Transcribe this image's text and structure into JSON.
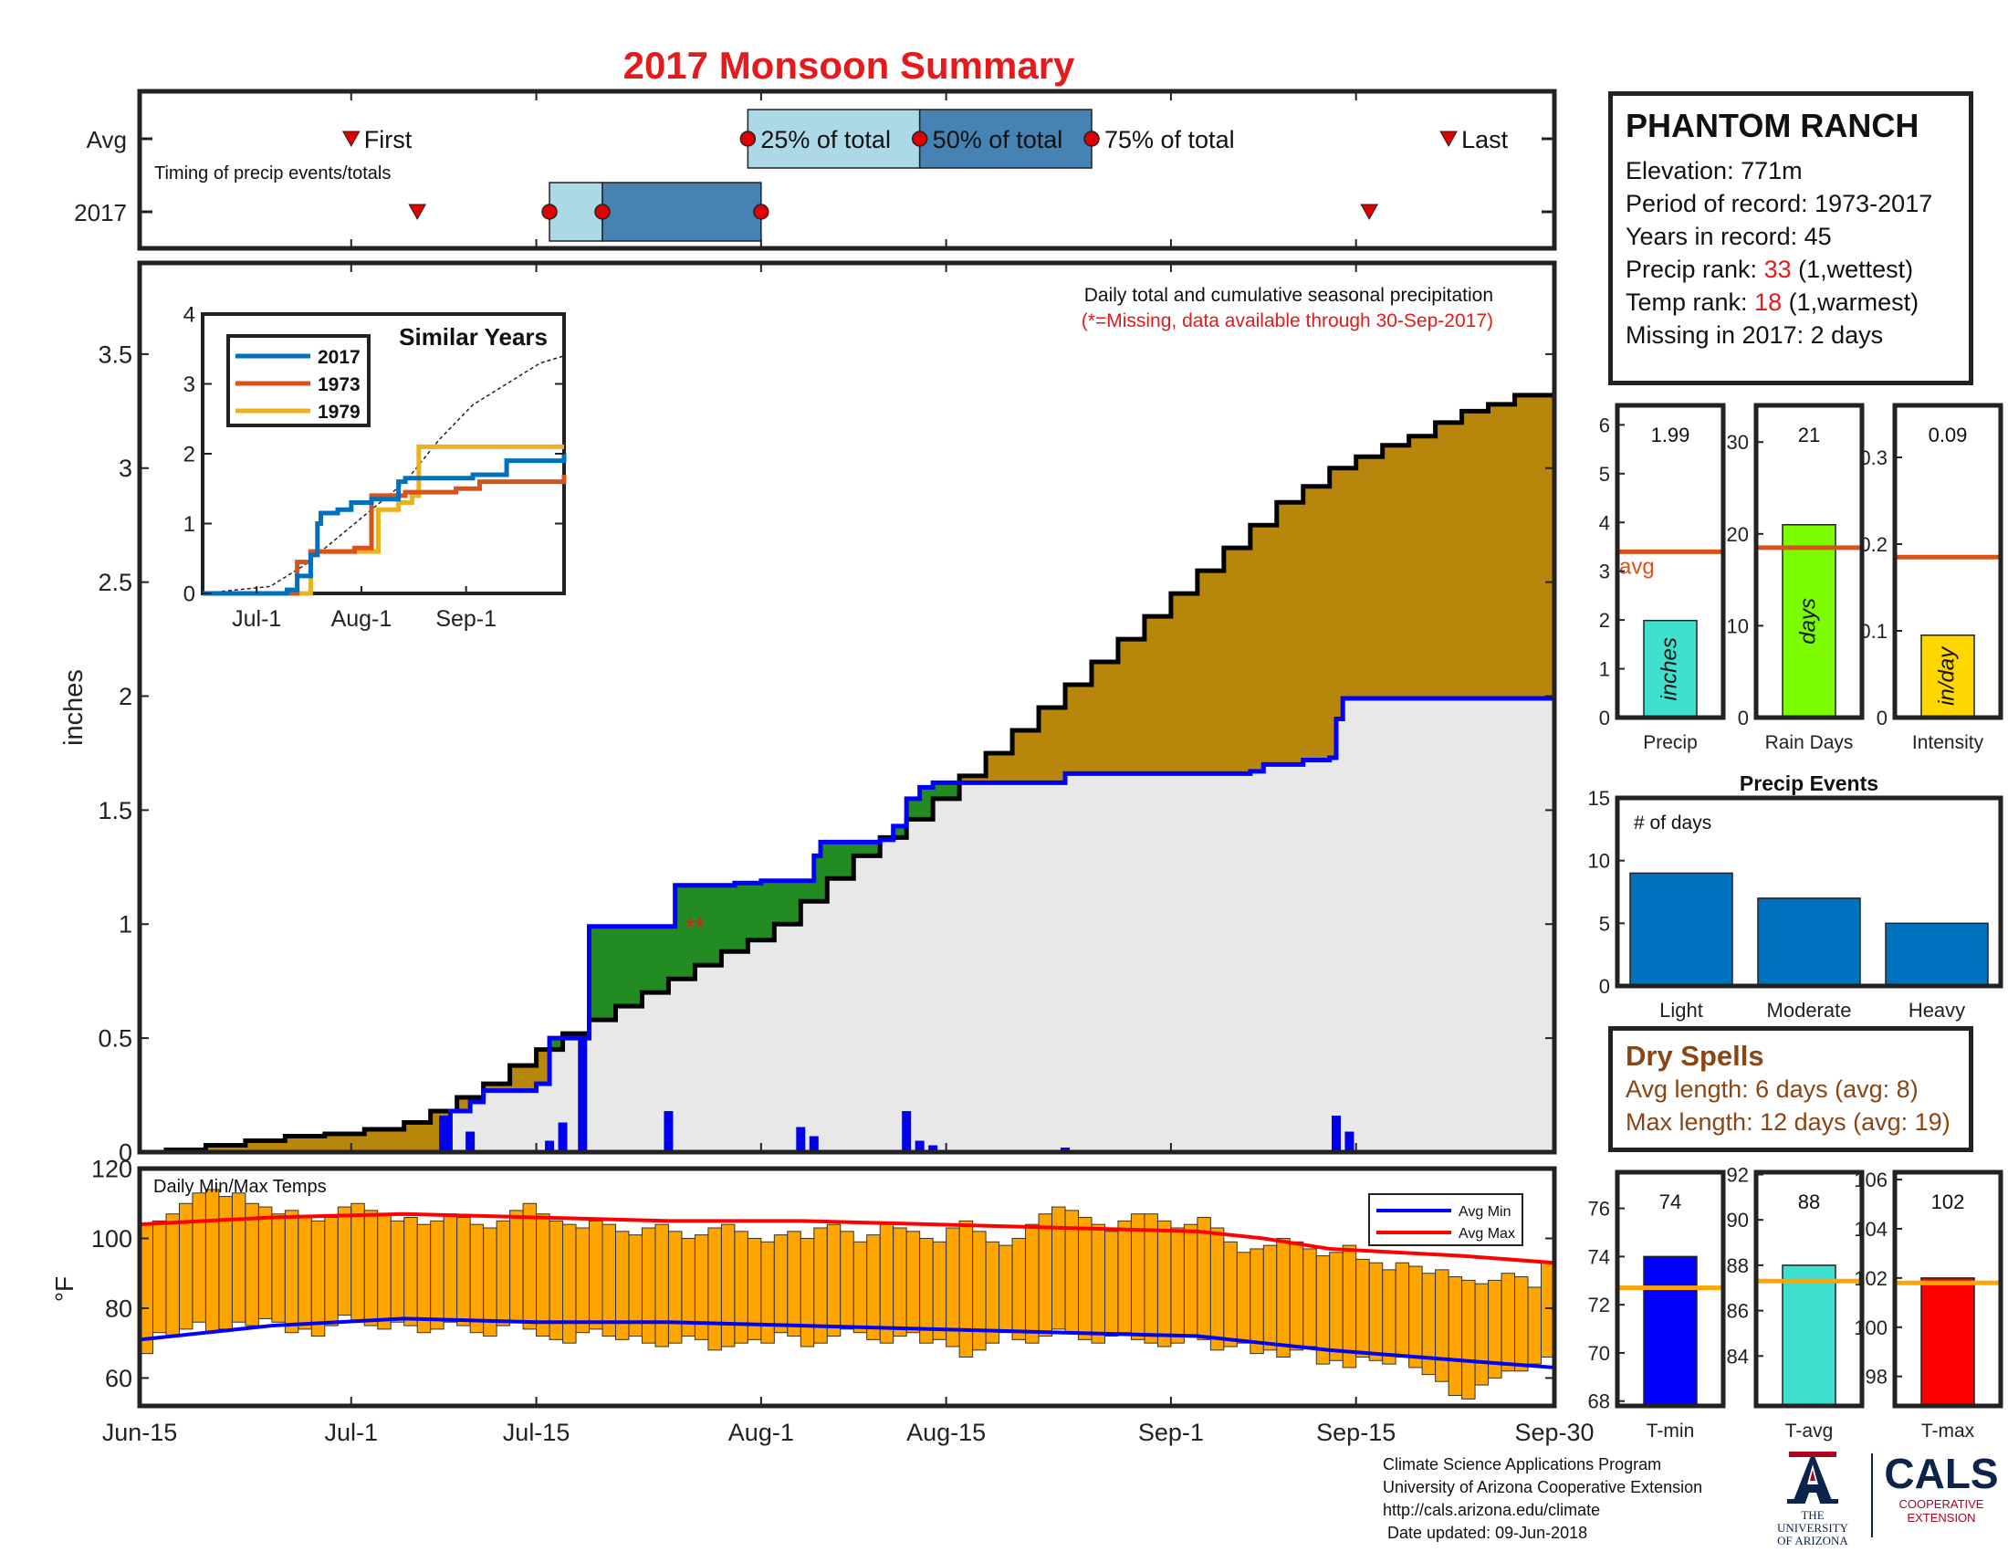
{
  "title": "2017 Monsoon Summary",
  "timing": {
    "row_labels": [
      "Avg",
      "2017"
    ],
    "caption": "Timing of precip events/totals",
    "labels": {
      "first": "First",
      "p25": "25% of total",
      "p50": "50% of total",
      "p75": "75% of total",
      "last": "Last"
    },
    "avg": {
      "first": 16,
      "p25": 46,
      "p50": 59,
      "p75": 72,
      "last": 99
    },
    "y2017": {
      "first": 21,
      "p25": 31,
      "p50": 35,
      "p75": 47,
      "last": 93
    }
  },
  "station": {
    "name": "PHANTOM RANCH",
    "elevation_label": "Elevation: 771m",
    "period_label": "Period of record: 1973-2017",
    "years_label": "Years in record: 45",
    "precip_rank_prefix": "Precip rank: ",
    "precip_rank": "33",
    "precip_rank_suffix": " (1,wettest)",
    "temp_rank_prefix": "Temp rank: ",
    "temp_rank": "18",
    "temp_rank_suffix": " (1,warmest)",
    "missing_label": "Missing in 2017: 2 days"
  },
  "dry_spells": {
    "title": "Dry Spells",
    "avg_line": "Avg length: 6 days (avg: 8)",
    "max_line": "Max length: 12 days (avg: 19)"
  },
  "footer": {
    "lines": [
      "Climate Science Applications Program",
      "University of Arizona Cooperative Extension",
      "http://cals.arizona.edu/climate",
      " Date updated: 09-Jun-2018"
    ],
    "ua_logo_text": [
      "THE UNIVERSITY",
      "OF ARIZONA"
    ],
    "cals_logo_text": [
      "CALS",
      "COOPERATIVE",
      "EXTENSION"
    ]
  },
  "chart_data": [
    {
      "id": "cumulative",
      "type": "area",
      "annotation": "Daily total and cumulative seasonal precipitation",
      "annotation2": "(*=Missing, data available through 30-Sep-2017)",
      "missing_marker": "**",
      "ylabel": "inches",
      "ylim": [
        0,
        3.9
      ],
      "yticks": [
        0,
        0.5,
        1,
        1.5,
        2,
        2.5,
        3,
        3.5
      ],
      "xlim": [
        0,
        107
      ],
      "xticks": [
        {
          "day": 0,
          "label": "Jun-15"
        },
        {
          "day": 16,
          "label": "Jul-1"
        },
        {
          "day": 30,
          "label": "Jul-15"
        },
        {
          "day": 47,
          "label": "Aug-1"
        },
        {
          "day": 61,
          "label": "Aug-15"
        },
        {
          "day": 78,
          "label": "Sep-1"
        },
        {
          "day": 92,
          "label": "Sep-15"
        },
        {
          "day": 107,
          "label": "Sep-30"
        }
      ],
      "avg_cumulative": [
        [
          0,
          0
        ],
        [
          2,
          0.01
        ],
        [
          5,
          0.03
        ],
        [
          8,
          0.05
        ],
        [
          11,
          0.07
        ],
        [
          14,
          0.08
        ],
        [
          17,
          0.1
        ],
        [
          20,
          0.13
        ],
        [
          22,
          0.18
        ],
        [
          24,
          0.24
        ],
        [
          26,
          0.3
        ],
        [
          28,
          0.38
        ],
        [
          30,
          0.45
        ],
        [
          32,
          0.52
        ],
        [
          34,
          0.58
        ],
        [
          36,
          0.64
        ],
        [
          38,
          0.7
        ],
        [
          40,
          0.76
        ],
        [
          42,
          0.82
        ],
        [
          44,
          0.88
        ],
        [
          46,
          0.93
        ],
        [
          48,
          1.0
        ],
        [
          50,
          1.1
        ],
        [
          52,
          1.2
        ],
        [
          54,
          1.3
        ],
        [
          56,
          1.38
        ],
        [
          58,
          1.46
        ],
        [
          60,
          1.55
        ],
        [
          62,
          1.65
        ],
        [
          64,
          1.75
        ],
        [
          66,
          1.85
        ],
        [
          68,
          1.95
        ],
        [
          70,
          2.05
        ],
        [
          72,
          2.15
        ],
        [
          74,
          2.25
        ],
        [
          76,
          2.35
        ],
        [
          78,
          2.45
        ],
        [
          80,
          2.55
        ],
        [
          82,
          2.65
        ],
        [
          84,
          2.75
        ],
        [
          86,
          2.85
        ],
        [
          88,
          2.92
        ],
        [
          90,
          3.0
        ],
        [
          92,
          3.05
        ],
        [
          94,
          3.1
        ],
        [
          96,
          3.14
        ],
        [
          98,
          3.2
        ],
        [
          100,
          3.25
        ],
        [
          102,
          3.28
        ],
        [
          104,
          3.32
        ],
        [
          107,
          3.38
        ]
      ],
      "cumulative_2017": [
        [
          0,
          0
        ],
        [
          23,
          0
        ],
        [
          23.5,
          0.18
        ],
        [
          25,
          0.22
        ],
        [
          26,
          0.27
        ],
        [
          30,
          0.3
        ],
        [
          31,
          0.5
        ],
        [
          33,
          0.5
        ],
        [
          34,
          0.99
        ],
        [
          40,
          0.99
        ],
        [
          40.5,
          1.17
        ],
        [
          44,
          1.17
        ],
        [
          45,
          1.18
        ],
        [
          47,
          1.19
        ],
        [
          50,
          1.19
        ],
        [
          51,
          1.3
        ],
        [
          51.5,
          1.36
        ],
        [
          56,
          1.37
        ],
        [
          57,
          1.43
        ],
        [
          58,
          1.55
        ],
        [
          59,
          1.6
        ],
        [
          60,
          1.62
        ],
        [
          70,
          1.66
        ],
        [
          83,
          1.66
        ],
        [
          84,
          1.67
        ],
        [
          85,
          1.7
        ],
        [
          88,
          1.72
        ],
        [
          90,
          1.73
        ],
        [
          90.5,
          1.9
        ],
        [
          91,
          1.99
        ],
        [
          107,
          1.99
        ]
      ],
      "daily_2017": [
        [
          23,
          0.16
        ],
        [
          25,
          0.09
        ],
        [
          31,
          0.05
        ],
        [
          32,
          0.13
        ],
        [
          33.5,
          0.5
        ],
        [
          40,
          0.18
        ],
        [
          45,
          0.01
        ],
        [
          50,
          0.11
        ],
        [
          51,
          0.07
        ],
        [
          58,
          0.18
        ],
        [
          59,
          0.05
        ],
        [
          60,
          0.03
        ],
        [
          67,
          0.01
        ],
        [
          70,
          0.02
        ],
        [
          84,
          0.01
        ],
        [
          85,
          0.01
        ],
        [
          86,
          0.01
        ],
        [
          90.5,
          0.16
        ],
        [
          91.5,
          0.09
        ]
      ],
      "missing_days": [
        44,
        45
      ]
    },
    {
      "id": "similar_years",
      "type": "line",
      "title": "Similar Years",
      "ylim": [
        0,
        4
      ],
      "yticks": [
        0,
        1,
        2,
        3,
        4
      ],
      "xticks": [
        {
          "day": 16,
          "label": "Jul-1"
        },
        {
          "day": 47,
          "label": "Aug-1"
        },
        {
          "day": 78,
          "label": "Sep-1"
        }
      ],
      "series": [
        {
          "name": "2017",
          "color": "#0072bd",
          "values": [
            [
              0,
              0
            ],
            [
              25,
              0.05
            ],
            [
              28,
              0.25
            ],
            [
              32,
              0.55
            ],
            [
              34,
              1.0
            ],
            [
              35,
              1.15
            ],
            [
              40,
              1.2
            ],
            [
              44,
              1.3
            ],
            [
              50,
              1.35
            ],
            [
              58,
              1.6
            ],
            [
              60,
              1.65
            ],
            [
              80,
              1.7
            ],
            [
              90,
              1.9
            ],
            [
              107,
              2.0
            ]
          ]
        },
        {
          "name": "1973",
          "color": "#d95319",
          "values": [
            [
              0,
              0
            ],
            [
              26,
              0
            ],
            [
              28,
              0.45
            ],
            [
              32,
              0.6
            ],
            [
              45,
              0.65
            ],
            [
              50,
              1.4
            ],
            [
              60,
              1.45
            ],
            [
              75,
              1.5
            ],
            [
              82,
              1.6
            ],
            [
              107,
              1.7
            ]
          ]
        },
        {
          "name": "1979",
          "color": "#edb120",
          "values": [
            [
              0,
              0
            ],
            [
              28,
              0
            ],
            [
              32,
              0.6
            ],
            [
              51,
              0.6
            ],
            [
              52,
              1.2
            ],
            [
              57,
              1.2
            ],
            [
              58,
              1.3
            ],
            [
              62,
              1.4
            ],
            [
              64,
              2.1
            ],
            [
              107,
              2.1
            ]
          ]
        }
      ],
      "avg_dashed": [
        [
          0,
          0
        ],
        [
          20,
          0.1
        ],
        [
          30,
          0.4
        ],
        [
          40,
          0.8
        ],
        [
          50,
          1.2
        ],
        [
          60,
          1.6
        ],
        [
          70,
          2.2
        ],
        [
          80,
          2.7
        ],
        [
          90,
          3.0
        ],
        [
          100,
          3.3
        ],
        [
          107,
          3.4
        ]
      ]
    },
    {
      "id": "temps",
      "type": "bar",
      "label": "Daily Min/Max Temps",
      "ylabel": "°F",
      "ylim": [
        52,
        120
      ],
      "yticks": [
        60,
        80,
        100,
        120
      ],
      "legend": [
        {
          "name": "Avg Min",
          "color": "#0000ff"
        },
        {
          "name": "Avg Max",
          "color": "#ff0000"
        }
      ],
      "legend_position": "top-right",
      "daily_max": [
        104,
        105,
        107,
        110,
        113,
        114,
        112,
        113,
        110,
        109,
        107,
        108,
        106,
        105,
        106,
        109,
        110,
        108,
        107,
        105,
        106,
        104,
        105,
        107,
        106,
        104,
        103,
        105,
        108,
        110,
        107,
        105,
        104,
        103,
        105,
        104,
        102,
        101,
        103,
        104,
        102,
        100,
        101,
        103,
        104,
        102,
        100,
        99,
        101,
        102,
        100,
        103,
        104,
        102,
        99,
        101,
        104,
        103,
        102,
        100,
        99,
        103,
        105,
        102,
        99,
        98,
        100,
        104,
        107,
        109,
        108,
        106,
        104,
        102,
        105,
        107,
        107,
        105,
        103,
        104,
        106,
        103,
        99,
        96,
        97,
        98,
        100,
        99,
        97,
        95,
        96,
        98,
        94,
        93,
        91,
        93,
        92,
        90,
        91,
        89,
        88,
        87,
        88,
        90,
        89,
        86,
        93
      ],
      "daily_min": [
        67,
        73,
        72,
        74,
        76,
        73,
        74,
        76,
        75,
        77,
        76,
        73,
        74,
        72,
        75,
        78,
        76,
        75,
        74,
        76,
        75,
        73,
        74,
        76,
        75,
        73,
        72,
        75,
        76,
        74,
        72,
        71,
        70,
        73,
        74,
        72,
        71,
        72,
        70,
        69,
        70,
        72,
        71,
        68,
        69,
        70,
        71,
        70,
        73,
        72,
        69,
        70,
        72,
        74,
        73,
        71,
        70,
        72,
        73,
        70,
        71,
        69,
        66,
        68,
        70,
        73,
        71,
        70,
        72,
        74,
        73,
        71,
        70,
        72,
        73,
        71,
        70,
        69,
        70,
        72,
        71,
        68,
        69,
        70,
        67,
        68,
        66,
        68,
        69,
        64,
        65,
        63,
        66,
        65,
        64,
        66,
        63,
        61,
        59,
        55,
        54,
        58,
        60,
        62,
        62,
        64,
        66
      ],
      "avg_max": [
        [
          0,
          104
        ],
        [
          10,
          106
        ],
        [
          20,
          107
        ],
        [
          30,
          106
        ],
        [
          40,
          105
        ],
        [
          50,
          105
        ],
        [
          60,
          104
        ],
        [
          70,
          103
        ],
        [
          80,
          102
        ],
        [
          85,
          100
        ],
        [
          90,
          97
        ],
        [
          100,
          95
        ],
        [
          107,
          93
        ]
      ],
      "avg_min": [
        [
          0,
          71
        ],
        [
          10,
          75
        ],
        [
          20,
          77
        ],
        [
          30,
          76
        ],
        [
          40,
          76
        ],
        [
          50,
          75
        ],
        [
          60,
          74
        ],
        [
          70,
          73
        ],
        [
          80,
          72
        ],
        [
          85,
          70
        ],
        [
          90,
          68
        ],
        [
          100,
          65
        ],
        [
          107,
          63
        ]
      ]
    },
    {
      "id": "precip_total",
      "type": "bar",
      "value": 1.99,
      "value_label": "1.99",
      "avg": 3.4,
      "avg_label": "avg",
      "unit": "inches",
      "xlabel": "Precip",
      "ylim": [
        0,
        6.4
      ],
      "yticks": [
        0,
        1,
        2,
        3,
        4,
        5,
        6
      ],
      "color": "#40e0d0"
    },
    {
      "id": "rain_days",
      "type": "bar",
      "value": 21,
      "value_label": "21",
      "avg": 18.5,
      "unit": "days",
      "xlabel": "Rain Days",
      "ylim": [
        0,
        34
      ],
      "yticks": [
        0,
        10,
        20,
        30
      ],
      "color": "#7cfc00"
    },
    {
      "id": "intensity",
      "type": "bar",
      "value": 0.095,
      "value_label": "0.09",
      "avg": 0.185,
      "unit": "in/day",
      "xlabel": "Intensity",
      "ylim": [
        0,
        0.36
      ],
      "yticks": [
        0,
        0.1,
        0.2,
        0.3
      ],
      "color": "#ffd700"
    },
    {
      "id": "precip_events",
      "type": "bar",
      "title": "Precip Events",
      "ylabel": "# of days",
      "categories": [
        "Light",
        "Moderate",
        "Heavy"
      ],
      "values": [
        9,
        7,
        5
      ],
      "ylim": [
        0,
        15
      ],
      "yticks": [
        0,
        5,
        10,
        15
      ],
      "color": "#0072bd"
    },
    {
      "id": "tmin",
      "type": "bar",
      "value": 74,
      "value_label": "74",
      "avg": 72.7,
      "xlabel": "T-min",
      "ylim": [
        67.8,
        77.5
      ],
      "yticks": [
        68,
        70,
        72,
        74,
        76
      ],
      "color": "#0000ff"
    },
    {
      "id": "tavg",
      "type": "bar",
      "value": 88,
      "value_label": "88",
      "avg": 87.3,
      "xlabel": "T-avg",
      "ylim": [
        81.8,
        92.1
      ],
      "yticks": [
        84,
        86,
        88,
        90,
        92
      ],
      "color": "#40e0d0"
    },
    {
      "id": "tmax",
      "type": "bar",
      "value": 102,
      "value_label": "102",
      "avg": 101.8,
      "xlabel": "T-max",
      "ylim": [
        96.8,
        106.3
      ],
      "yticks": [
        98,
        100,
        102,
        104,
        106
      ],
      "color": "#ff0000"
    }
  ]
}
